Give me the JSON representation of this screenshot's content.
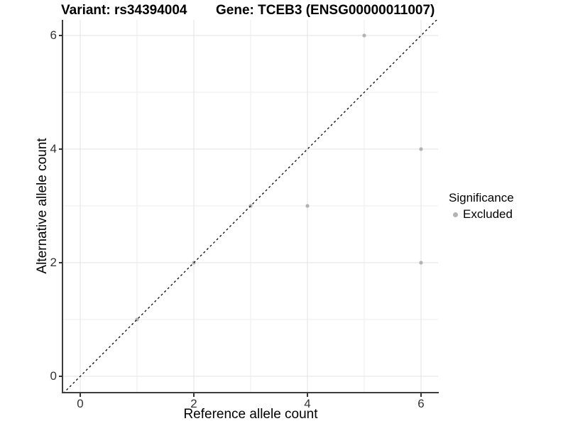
{
  "chart_data": {
    "type": "scatter",
    "title_variant": "Variant: rs34394004",
    "title_gene": "Gene: TCEB3 (ENSG00000011007)",
    "xlabel": "Reference allele count",
    "ylabel": "Alternative allele count",
    "xlim": [
      -0.3,
      6.3
    ],
    "ylim": [
      -0.275,
      6.275
    ],
    "x_ticks": [
      0,
      2,
      4,
      6
    ],
    "y_ticks": [
      0,
      2,
      4,
      6
    ],
    "x_minor": [
      1,
      3,
      5
    ],
    "y_minor": [
      1,
      3,
      5
    ],
    "grid": "major and minor gridlines on white background",
    "grid_major_color": "#e3e3e3",
    "grid_minor_color": "#eeeeee",
    "identity_line": {
      "style": "dashed",
      "color": "#000000",
      "from": [
        -0.3,
        -0.3
      ],
      "to": [
        6.3,
        6.3
      ]
    },
    "series": [
      {
        "name": "Excluded",
        "color": "#b3b3b3",
        "points": [
          [
            1,
            1
          ],
          [
            2,
            2
          ],
          [
            3,
            3
          ],
          [
            4,
            3
          ],
          [
            5,
            6
          ],
          [
            6,
            2
          ],
          [
            6,
            4
          ]
        ]
      }
    ]
  },
  "legend": {
    "title": "Significance",
    "items": [
      {
        "label": "Excluded",
        "color": "#b3b3b3"
      }
    ]
  }
}
